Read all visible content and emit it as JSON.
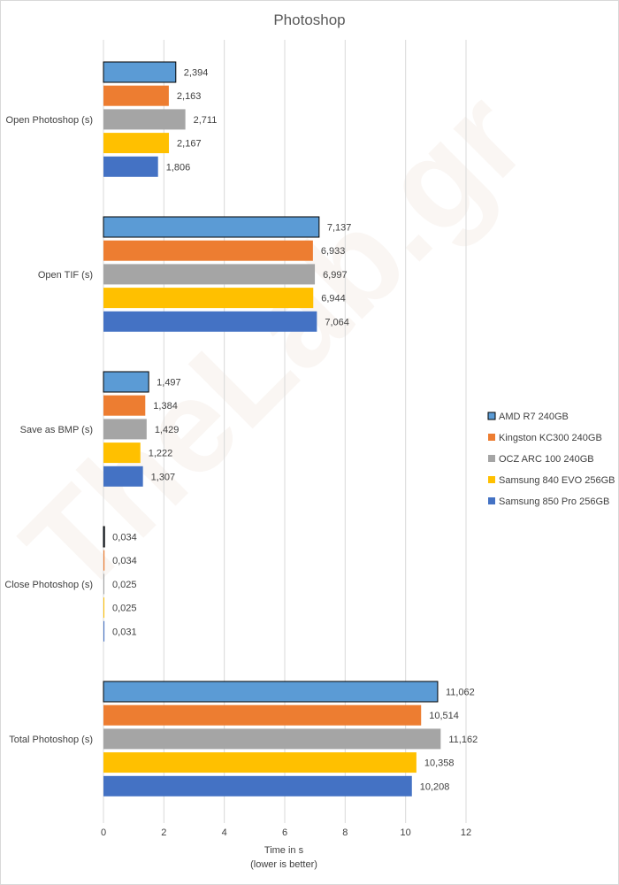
{
  "chart_data": {
    "type": "bar",
    "orientation": "horizontal",
    "title": "Photoshop",
    "xlabel": "Time in s",
    "xlabel_note": "(lower is better)",
    "xlim": [
      0,
      12
    ],
    "xticks": [
      "0",
      "2",
      "4",
      "6",
      "8",
      "10",
      "12"
    ],
    "grid": true,
    "legend_position": "right",
    "categories": [
      "Open Photoshop (s)",
      "Open TIF (s)",
      "Save as BMP (s)",
      "Close Photoshop (s)",
      "Total Photoshop (s)"
    ],
    "series": [
      {
        "name": "AMD R7 240GB",
        "color": "#5b9bd5",
        "outline": "#000000",
        "values": [
          2.394,
          7.137,
          1.497,
          0.034,
          11.062
        ],
        "labels": [
          "2,394",
          "7,137",
          "1,497",
          "0,034",
          "11,062"
        ]
      },
      {
        "name": "Kingston KC300 240GB",
        "color": "#ed7d31",
        "values": [
          2.163,
          6.933,
          1.384,
          0.034,
          10.514
        ],
        "labels": [
          "2,163",
          "6,933",
          "1,384",
          "0,034",
          "10,514"
        ]
      },
      {
        "name": "OCZ ARC 100 240GB",
        "color": "#a5a5a5",
        "values": [
          2.711,
          6.997,
          1.429,
          0.025,
          11.162
        ],
        "labels": [
          "2,711",
          "6,997",
          "1,429",
          "0,025",
          "11,162"
        ]
      },
      {
        "name": "Samsung 840 EVO 256GB",
        "color": "#ffc000",
        "values": [
          2.167,
          6.944,
          1.222,
          0.025,
          10.358
        ],
        "labels": [
          "2,167",
          "6,944",
          "1,222",
          "0,025",
          "10,358"
        ]
      },
      {
        "name": "Samsung 850 Pro 256GB",
        "color": "#4472c4",
        "values": [
          1.806,
          7.064,
          1.307,
          0.031,
          10.208
        ],
        "labels": [
          "1,806",
          "7,064",
          "1,307",
          "0,031",
          "10,208"
        ]
      }
    ]
  },
  "watermark": "TheLab.gr"
}
